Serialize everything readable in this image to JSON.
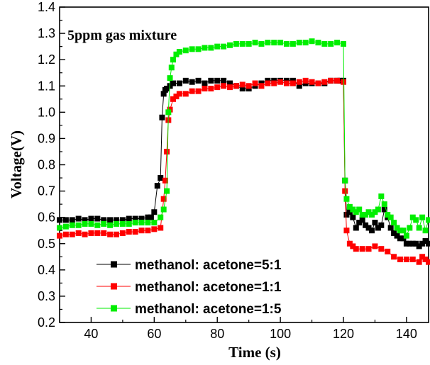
{
  "chart_data": {
    "type": "line",
    "annotation": "5ppm gas mixture",
    "xlabel": "Time (s)",
    "ylabel": "Voltage(V)",
    "xlim": [
      30,
      147
    ],
    "ylim": [
      0.2,
      1.4
    ],
    "x_ticks": [
      40,
      60,
      80,
      100,
      120,
      140
    ],
    "y_ticks": [
      0.2,
      0.3,
      0.4,
      0.5,
      0.6,
      0.7,
      0.8,
      0.9,
      1.0,
      1.1,
      1.2,
      1.3,
      1.4
    ],
    "legend_position": "bottom-left",
    "grid": false,
    "series": [
      {
        "name": "methanol: acetone=5:1",
        "color": "#000000",
        "points": [
          [
            30,
            0.59
          ],
          [
            32,
            0.59
          ],
          [
            34,
            0.59
          ],
          [
            36,
            0.595
          ],
          [
            38,
            0.59
          ],
          [
            40,
            0.595
          ],
          [
            42,
            0.595
          ],
          [
            44,
            0.59
          ],
          [
            46,
            0.59
          ],
          [
            48,
            0.59
          ],
          [
            50,
            0.59
          ],
          [
            52,
            0.595
          ],
          [
            54,
            0.595
          ],
          [
            56,
            0.595
          ],
          [
            58,
            0.6
          ],
          [
            59,
            0.6
          ],
          [
            60,
            0.62
          ],
          [
            61,
            0.72
          ],
          [
            62,
            0.75
          ],
          [
            62.5,
            0.98
          ],
          [
            63,
            1.07
          ],
          [
            63.5,
            1.085
          ],
          [
            64,
            1.09
          ],
          [
            65,
            1.1
          ],
          [
            66,
            1.11
          ],
          [
            68,
            1.11
          ],
          [
            70,
            1.12
          ],
          [
            72,
            1.115
          ],
          [
            74,
            1.12
          ],
          [
            76,
            1.11
          ],
          [
            78,
            1.12
          ],
          [
            80,
            1.12
          ],
          [
            82,
            1.12
          ],
          [
            84,
            1.11
          ],
          [
            86,
            1.1
          ],
          [
            88,
            1.09
          ],
          [
            90,
            1.09
          ],
          [
            92,
            1.1
          ],
          [
            94,
            1.11
          ],
          [
            96,
            1.12
          ],
          [
            98,
            1.12
          ],
          [
            100,
            1.12
          ],
          [
            102,
            1.12
          ],
          [
            104,
            1.12
          ],
          [
            106,
            1.1
          ],
          [
            108,
            1.11
          ],
          [
            110,
            1.11
          ],
          [
            112,
            1.11
          ],
          [
            114,
            1.11
          ],
          [
            116,
            1.12
          ],
          [
            118,
            1.12
          ],
          [
            119,
            1.12
          ],
          [
            120,
            1.12
          ],
          [
            120.5,
            0.74
          ],
          [
            121,
            0.61
          ],
          [
            122,
            0.62
          ],
          [
            123,
            0.6
          ],
          [
            124,
            0.56
          ],
          [
            125,
            0.58
          ],
          [
            126,
            0.59
          ],
          [
            127,
            0.57
          ],
          [
            128,
            0.56
          ],
          [
            129,
            0.55
          ],
          [
            130,
            0.58
          ],
          [
            131,
            0.56
          ],
          [
            132,
            0.57
          ],
          [
            133,
            0.63
          ],
          [
            134,
            0.6
          ],
          [
            135,
            0.56
          ],
          [
            136,
            0.54
          ],
          [
            137,
            0.53
          ],
          [
            138,
            0.52
          ],
          [
            139,
            0.52
          ],
          [
            140,
            0.5
          ],
          [
            141,
            0.5
          ],
          [
            142,
            0.5
          ],
          [
            143,
            0.5
          ],
          [
            144,
            0.49
          ],
          [
            145,
            0.5
          ],
          [
            146,
            0.51
          ],
          [
            147,
            0.5
          ]
        ]
      },
      {
        "name": "methanol: acetone=1:1",
        "color": "#ff0000",
        "points": [
          [
            30,
            0.53
          ],
          [
            32,
            0.535
          ],
          [
            34,
            0.535
          ],
          [
            36,
            0.54
          ],
          [
            38,
            0.535
          ],
          [
            40,
            0.54
          ],
          [
            42,
            0.54
          ],
          [
            44,
            0.54
          ],
          [
            46,
            0.535
          ],
          [
            48,
            0.535
          ],
          [
            50,
            0.54
          ],
          [
            52,
            0.545
          ],
          [
            54,
            0.545
          ],
          [
            56,
            0.55
          ],
          [
            58,
            0.55
          ],
          [
            60,
            0.555
          ],
          [
            62,
            0.56
          ],
          [
            63,
            0.67
          ],
          [
            63.5,
            0.74
          ],
          [
            64,
            0.85
          ],
          [
            64.5,
            0.97
          ],
          [
            65,
            1.01
          ],
          [
            66,
            1.05
          ],
          [
            67,
            1.06
          ],
          [
            68,
            1.07
          ],
          [
            70,
            1.07
          ],
          [
            72,
            1.08
          ],
          [
            74,
            1.08
          ],
          [
            76,
            1.09
          ],
          [
            78,
            1.09
          ],
          [
            80,
            1.095
          ],
          [
            82,
            1.1
          ],
          [
            84,
            1.095
          ],
          [
            86,
            1.1
          ],
          [
            88,
            1.105
          ],
          [
            90,
            1.1
          ],
          [
            92,
            1.11
          ],
          [
            94,
            1.1
          ],
          [
            96,
            1.11
          ],
          [
            98,
            1.11
          ],
          [
            100,
            1.115
          ],
          [
            102,
            1.11
          ],
          [
            104,
            1.11
          ],
          [
            106,
            1.115
          ],
          [
            108,
            1.12
          ],
          [
            110,
            1.115
          ],
          [
            112,
            1.11
          ],
          [
            114,
            1.115
          ],
          [
            116,
            1.12
          ],
          [
            118,
            1.12
          ],
          [
            120,
            1.115
          ],
          [
            120.5,
            0.7
          ],
          [
            121,
            0.55
          ],
          [
            122,
            0.5
          ],
          [
            123,
            0.49
          ],
          [
            124,
            0.48
          ],
          [
            126,
            0.48
          ],
          [
            128,
            0.48
          ],
          [
            130,
            0.49
          ],
          [
            132,
            0.48
          ],
          [
            134,
            0.47
          ],
          [
            136,
            0.45
          ],
          [
            138,
            0.44
          ],
          [
            140,
            0.44
          ],
          [
            142,
            0.44
          ],
          [
            144,
            0.43
          ],
          [
            145,
            0.45
          ],
          [
            146,
            0.44
          ],
          [
            147,
            0.43
          ]
        ]
      },
      {
        "name": "methanol: acetone=1:5",
        "color": "#00ee00",
        "points": [
          [
            30,
            0.56
          ],
          [
            32,
            0.565
          ],
          [
            34,
            0.57
          ],
          [
            36,
            0.57
          ],
          [
            38,
            0.575
          ],
          [
            40,
            0.575
          ],
          [
            42,
            0.57
          ],
          [
            44,
            0.575
          ],
          [
            46,
            0.57
          ],
          [
            48,
            0.575
          ],
          [
            50,
            0.575
          ],
          [
            52,
            0.575
          ],
          [
            54,
            0.58
          ],
          [
            56,
            0.58
          ],
          [
            58,
            0.58
          ],
          [
            60,
            0.58
          ],
          [
            62,
            0.6
          ],
          [
            63,
            0.63
          ],
          [
            64,
            0.7
          ],
          [
            64.5,
            1.0
          ],
          [
            65,
            1.13
          ],
          [
            65.5,
            1.17
          ],
          [
            66,
            1.2
          ],
          [
            67,
            1.22
          ],
          [
            68,
            1.23
          ],
          [
            70,
            1.235
          ],
          [
            72,
            1.24
          ],
          [
            74,
            1.24
          ],
          [
            76,
            1.245
          ],
          [
            78,
            1.245
          ],
          [
            80,
            1.25
          ],
          [
            82,
            1.25
          ],
          [
            84,
            1.255
          ],
          [
            86,
            1.26
          ],
          [
            88,
            1.26
          ],
          [
            90,
            1.26
          ],
          [
            92,
            1.265
          ],
          [
            94,
            1.26
          ],
          [
            96,
            1.265
          ],
          [
            98,
            1.265
          ],
          [
            100,
            1.265
          ],
          [
            102,
            1.26
          ],
          [
            104,
            1.26
          ],
          [
            106,
            1.265
          ],
          [
            108,
            1.265
          ],
          [
            110,
            1.27
          ],
          [
            112,
            1.265
          ],
          [
            114,
            1.26
          ],
          [
            116,
            1.26
          ],
          [
            118,
            1.265
          ],
          [
            120,
            1.26
          ],
          [
            120.5,
            0.74
          ],
          [
            121,
            0.67
          ],
          [
            122,
            0.64
          ],
          [
            123,
            0.63
          ],
          [
            124,
            0.62
          ],
          [
            125,
            0.63
          ],
          [
            126,
            0.61
          ],
          [
            127,
            0.61
          ],
          [
            128,
            0.62
          ],
          [
            129,
            0.61
          ],
          [
            130,
            0.62
          ],
          [
            131,
            0.63
          ],
          [
            132,
            0.68
          ],
          [
            133,
            0.65
          ],
          [
            134,
            0.61
          ],
          [
            135,
            0.6
          ],
          [
            136,
            0.58
          ],
          [
            137,
            0.56
          ],
          [
            138,
            0.55
          ],
          [
            139,
            0.55
          ],
          [
            140,
            0.53
          ],
          [
            141,
            0.56
          ],
          [
            142,
            0.6
          ],
          [
            143,
            0.59
          ],
          [
            144,
            0.56
          ],
          [
            145,
            0.6
          ],
          [
            146,
            0.55
          ],
          [
            147,
            0.59
          ]
        ]
      }
    ]
  }
}
